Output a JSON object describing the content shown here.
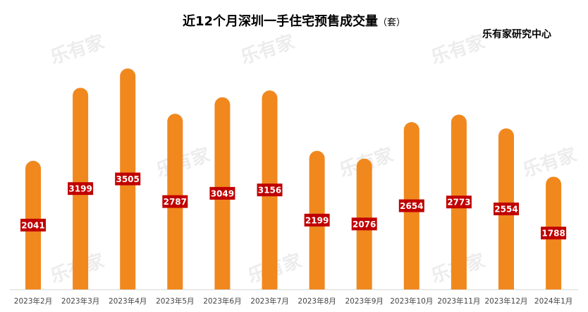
{
  "chart_data": {
    "type": "bar",
    "title": "近12个月深圳一手住宅预售成交量",
    "unit": "（套）",
    "source": "乐有家研究中心",
    "categories": [
      "2023年2月",
      "2023年3月",
      "2023年4月",
      "2023年5月",
      "2023年6月",
      "2023年7月",
      "2023年8月",
      "2023年9月",
      "2023年10月",
      "2023年11月",
      "2023年12月",
      "2024年1月"
    ],
    "values": [
      2041,
      3199,
      3505,
      2787,
      3049,
      3156,
      2199,
      2076,
      2654,
      2773,
      2554,
      1788
    ],
    "ylim": [
      0,
      3505
    ],
    "grid": false,
    "bar_color": "#f0881e",
    "label_bg": "#c00000",
    "watermark": "乐有家"
  }
}
